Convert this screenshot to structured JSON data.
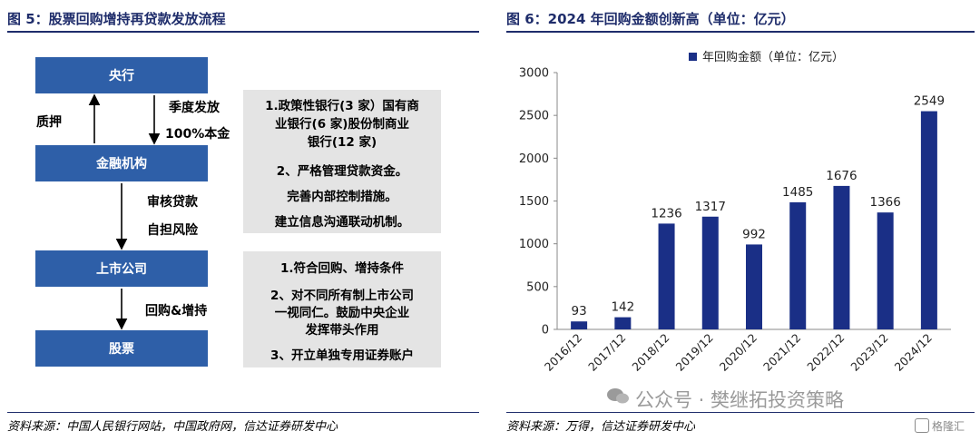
{
  "left_figure": {
    "title": "图 5：股票回购增持再贷款发放流程",
    "source": "资料来源：中国人民银行网站，中国政府网，信达证券研发中心",
    "nodes": [
      "央行",
      "金融机构",
      "上市公司",
      "股票"
    ],
    "edge_labels": {
      "pledge": "质押",
      "quarterly": "季度发放",
      "principal": "100%本金",
      "review": "审核贷款",
      "risk": "自担风险",
      "buyback": "回购&增持"
    },
    "box1_lines": [
      "1.政策性银行(3 家）国有商",
      "业银行(6 家)股份制商业",
      "银行(12 家)",
      "2、严格管理贷款资金。",
      "完善内部控制措施。",
      "建立信息沟通联动机制。"
    ],
    "box2_lines": [
      "1.符合回购、增持条件",
      "2、对不同所有制上市公司",
      "一视同仁。鼓励中央企业",
      "发挥带头作用",
      "3、开立单独专用证券账户"
    ]
  },
  "right_figure": {
    "title": "图 6：2024 年回购金额创新高（单位：亿元）",
    "source": "资料来源：万得，信达证券研发中心"
  },
  "watermark": "公众号 · 樊继拓投资策略",
  "logo_text": "格隆汇",
  "chart_data": {
    "type": "bar",
    "title": "",
    "xlabel": "",
    "ylabel": "",
    "categories": [
      "2016/12",
      "2017/12",
      "2018/12",
      "2019/12",
      "2020/12",
      "2021/12",
      "2022/12",
      "2023/12",
      "2024/12"
    ],
    "series": [
      {
        "name": "年回购金额（单位：亿元）",
        "values": [
          93,
          142,
          1236,
          1317,
          992,
          1485,
          1676,
          1366,
          2549
        ]
      }
    ],
    "ylim": [
      0,
      3000
    ],
    "yticks": [
      0,
      500,
      1000,
      1500,
      2000,
      2500,
      3000
    ],
    "legend": "top-center",
    "grid": false,
    "bar_color": "#1a2f86"
  }
}
